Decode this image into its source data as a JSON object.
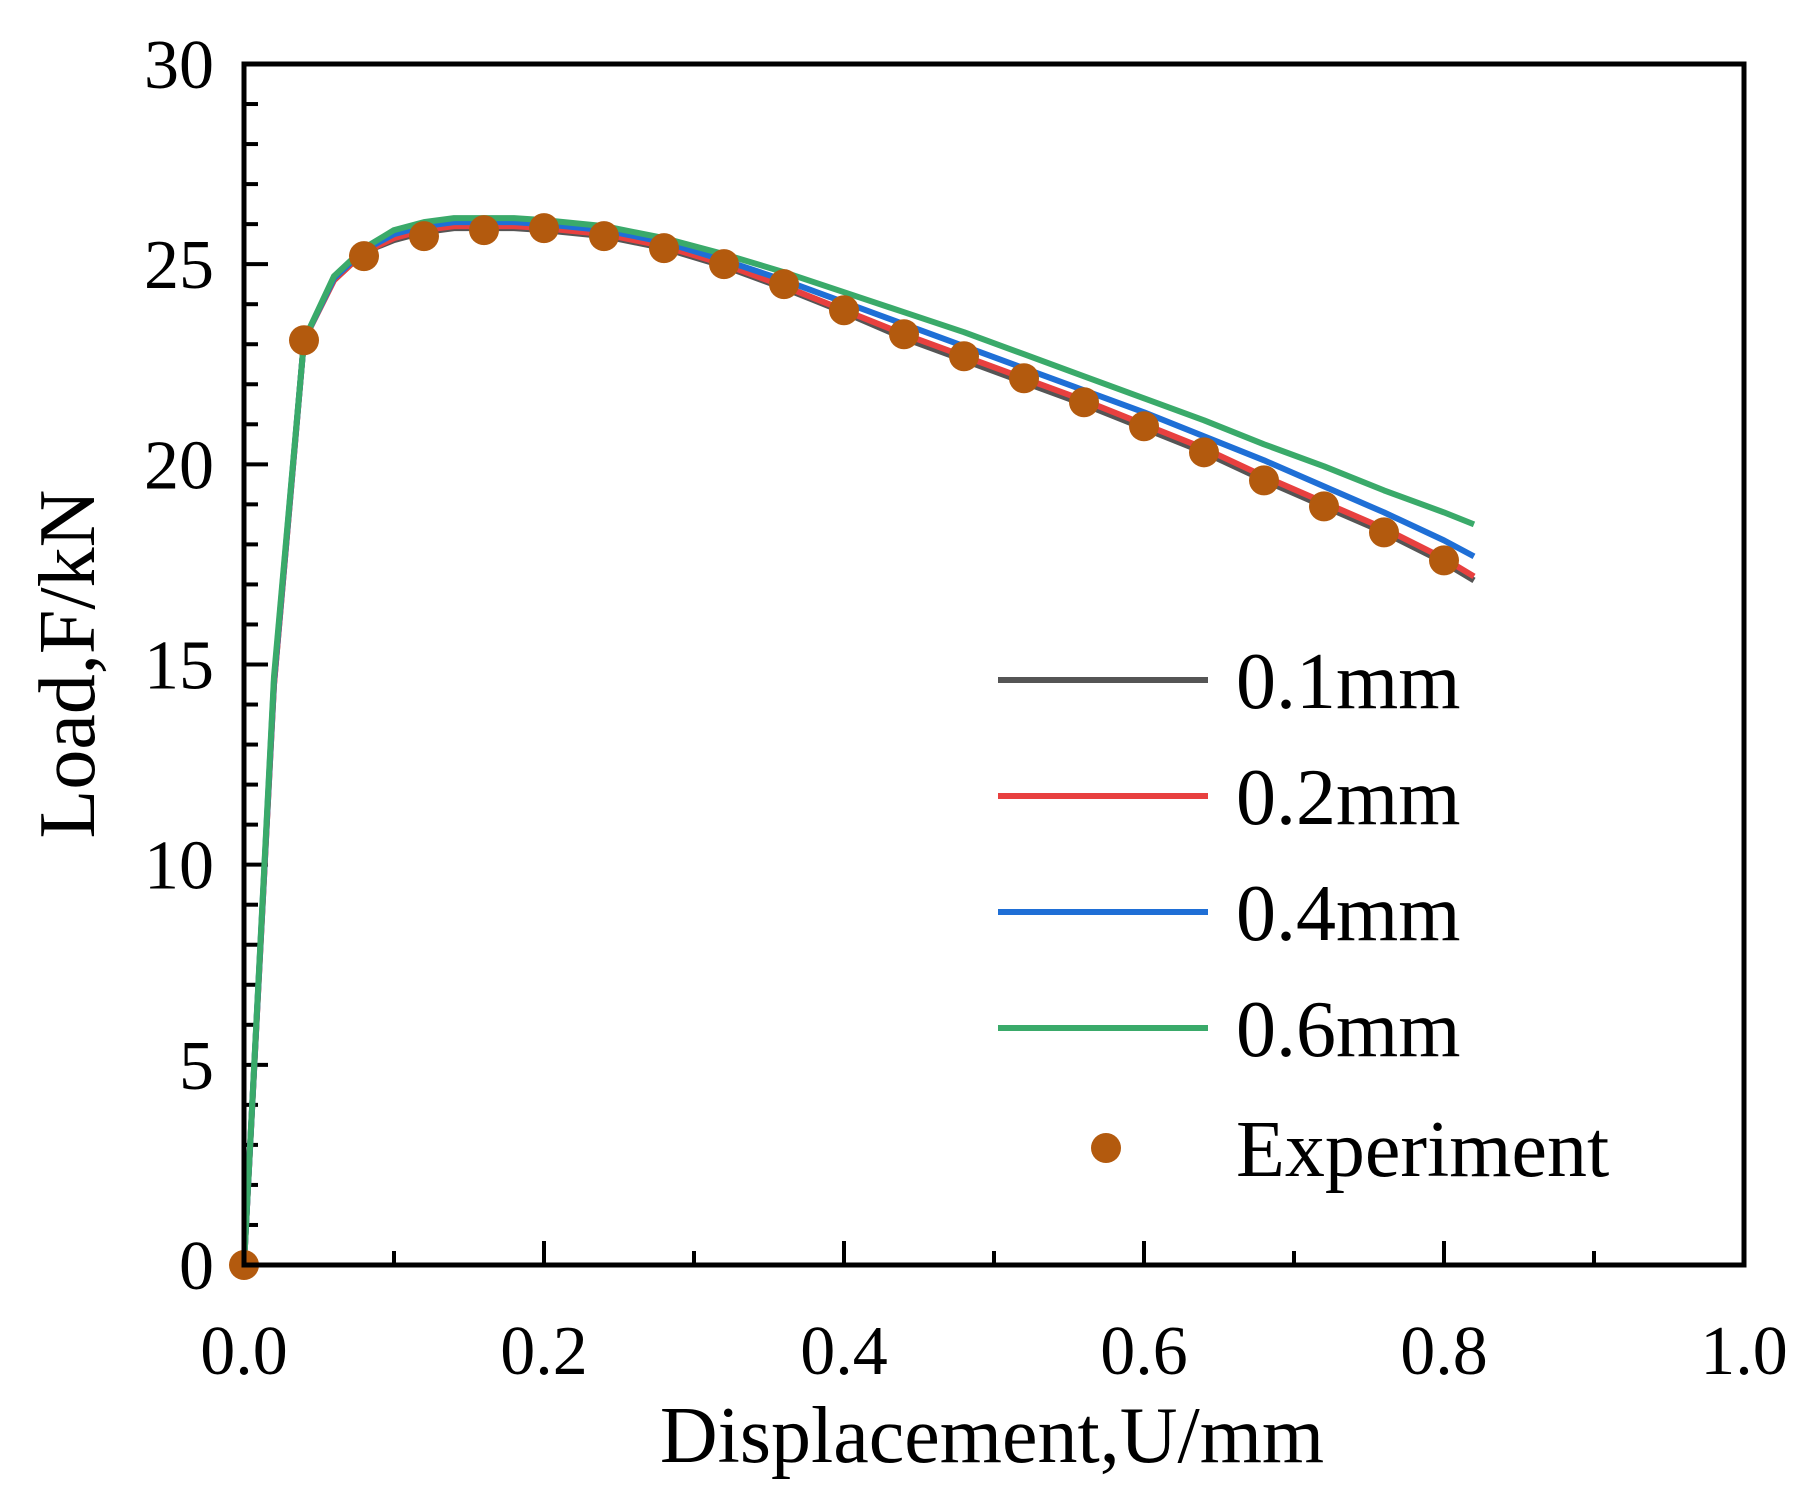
{
  "chart_data": {
    "type": "line",
    "title": "",
    "xlabel": "Displacement,U/mm",
    "ylabel": "Load,F/kN",
    "xlim": [
      0.0,
      1.0
    ],
    "ylim": [
      0,
      30
    ],
    "xticks": [
      "0.0",
      "0.2",
      "0.4",
      "0.6",
      "0.8",
      "1.0"
    ],
    "yticks": [
      "0",
      "5",
      "10",
      "15",
      "20",
      "25",
      "30"
    ],
    "legend_position": "bottom-right",
    "series": [
      {
        "name": "0.1mm",
        "color": "#555555",
        "x": [
          0,
          0.02,
          0.04,
          0.06,
          0.08,
          0.1,
          0.12,
          0.14,
          0.16,
          0.18,
          0.2,
          0.24,
          0.28,
          0.32,
          0.36,
          0.4,
          0.44,
          0.48,
          0.52,
          0.56,
          0.6,
          0.64,
          0.68,
          0.72,
          0.76,
          0.8,
          0.82
        ],
        "y": [
          0,
          14.5,
          23.1,
          24.6,
          25.3,
          25.6,
          25.8,
          25.9,
          25.9,
          25.9,
          25.85,
          25.7,
          25.4,
          24.95,
          24.4,
          23.8,
          23.15,
          22.6,
          22.05,
          21.5,
          20.9,
          20.3,
          19.6,
          18.95,
          18.3,
          17.55,
          17.1
        ]
      },
      {
        "name": "0.2mm",
        "color": "#e8403f",
        "x": [
          0,
          0.02,
          0.04,
          0.06,
          0.08,
          0.1,
          0.12,
          0.14,
          0.16,
          0.18,
          0.2,
          0.24,
          0.28,
          0.32,
          0.36,
          0.4,
          0.44,
          0.48,
          0.52,
          0.56,
          0.6,
          0.64,
          0.68,
          0.72,
          0.76,
          0.8,
          0.82
        ],
        "y": [
          0,
          14.5,
          23.1,
          24.6,
          25.3,
          25.65,
          25.85,
          25.95,
          25.95,
          25.95,
          25.9,
          25.75,
          25.45,
          25.0,
          24.45,
          23.85,
          23.25,
          22.7,
          22.15,
          21.6,
          21.0,
          20.4,
          19.7,
          19.05,
          18.4,
          17.65,
          17.2
        ]
      },
      {
        "name": "0.4mm",
        "color": "#1f6fd6",
        "x": [
          0,
          0.02,
          0.04,
          0.06,
          0.08,
          0.1,
          0.12,
          0.14,
          0.16,
          0.18,
          0.2,
          0.24,
          0.28,
          0.32,
          0.36,
          0.4,
          0.44,
          0.48,
          0.52,
          0.56,
          0.6,
          0.64,
          0.68,
          0.72,
          0.76,
          0.8,
          0.82
        ],
        "y": [
          0,
          14.6,
          23.1,
          24.65,
          25.35,
          25.75,
          25.95,
          26.05,
          26.05,
          26.05,
          26.0,
          25.85,
          25.55,
          25.1,
          24.6,
          24.05,
          23.5,
          22.95,
          22.4,
          21.85,
          21.3,
          20.7,
          20.1,
          19.45,
          18.8,
          18.1,
          17.7
        ]
      },
      {
        "name": "0.6mm",
        "color": "#3aaa6a",
        "x": [
          0,
          0.02,
          0.04,
          0.06,
          0.08,
          0.1,
          0.12,
          0.14,
          0.16,
          0.18,
          0.2,
          0.24,
          0.28,
          0.32,
          0.36,
          0.4,
          0.44,
          0.48,
          0.52,
          0.56,
          0.6,
          0.64,
          0.68,
          0.72,
          0.76,
          0.8,
          0.82
        ],
        "y": [
          0,
          14.7,
          23.1,
          24.7,
          25.4,
          25.85,
          26.05,
          26.15,
          26.15,
          26.15,
          26.1,
          25.95,
          25.65,
          25.25,
          24.8,
          24.3,
          23.8,
          23.3,
          22.75,
          22.2,
          21.65,
          21.1,
          20.5,
          19.95,
          19.35,
          18.8,
          18.5
        ]
      }
    ],
    "experiment": {
      "name": "Experiment",
      "color": "#b35a0e",
      "x": [
        0.0,
        0.04,
        0.08,
        0.12,
        0.16,
        0.2,
        0.24,
        0.28,
        0.32,
        0.36,
        0.4,
        0.44,
        0.48,
        0.52,
        0.56,
        0.6,
        0.64,
        0.68,
        0.72,
        0.76,
        0.8
      ],
      "y": [
        0.0,
        23.1,
        25.2,
        25.7,
        25.85,
        25.9,
        25.7,
        25.4,
        25.0,
        24.5,
        23.85,
        23.25,
        22.7,
        22.15,
        21.55,
        20.95,
        20.3,
        19.6,
        18.95,
        18.3,
        17.6
      ]
    }
  }
}
